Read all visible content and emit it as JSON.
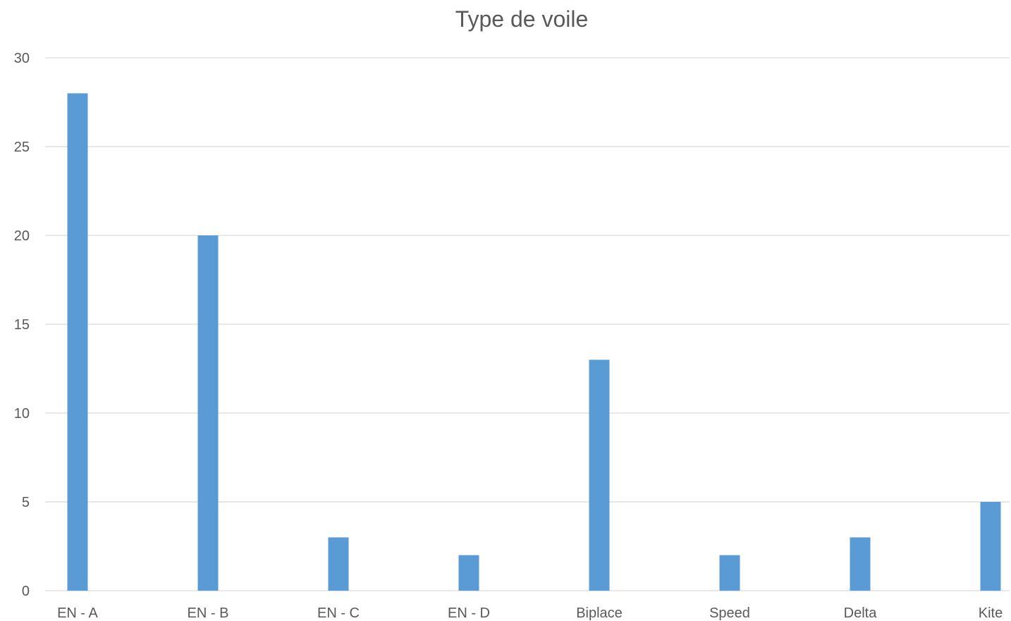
{
  "chart_data": {
    "type": "bar",
    "title": "Type de voile",
    "xlabel": "",
    "ylabel": "",
    "categories": [
      "EN - A",
      "EN - B",
      "EN - C",
      "EN - D",
      "Biplace",
      "Speed",
      "Delta",
      "Kite"
    ],
    "values": [
      28,
      20,
      3,
      2,
      13,
      2,
      3,
      5
    ],
    "ylim": [
      0,
      30
    ],
    "yticks": [
      0,
      5,
      10,
      15,
      20,
      25,
      30
    ],
    "grid": true,
    "legend": "none",
    "bar_color": "#5b9bd5"
  }
}
